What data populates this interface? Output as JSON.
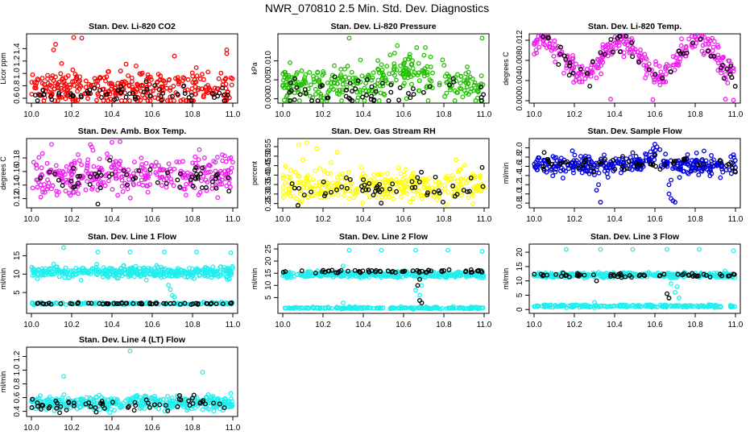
{
  "figure_title": "NWR_070810  2.5 Min. Std. Dev. Diagnostics",
  "colors": {
    "red": "#ff0000",
    "green": "#22c000",
    "magenta": "#ee22ee",
    "yellow": "#ffff00",
    "blue": "#0000dd",
    "cyan": "#22eeee",
    "overlay": "#000000"
  },
  "chart_data": [
    {
      "type": "scatter",
      "title": "Stan. Dev. Li-820 CO2",
      "ylabel": "Licor ppm",
      "xlim": [
        10.0,
        11.0
      ],
      "xticks": [
        "10.0",
        "10.2",
        "10.4",
        "10.6",
        "10.8",
        "11.0"
      ],
      "ylim": [
        0.56,
        1.6
      ],
      "yticks": [
        "0.6",
        "0.8",
        "1.0",
        "1.2",
        "1.4"
      ],
      "series": [
        {
          "color": "red",
          "baseline": 0.76,
          "spread": 0.14,
          "n": 320,
          "outliers": [
            [
              0.21,
              1.58
            ],
            [
              0.25,
              1.57
            ],
            [
              0.12,
              1.47
            ],
            [
              0.11,
              1.38
            ],
            [
              0.71,
              1.28
            ],
            [
              0.97,
              1.38
            ],
            [
              0.97,
              1.32
            ],
            [
              0.15,
              1.16
            ],
            [
              0.47,
              1.15
            ],
            [
              0.52,
              1.12
            ],
            [
              0.23,
              0.57
            ]
          ]
        },
        {
          "color": "overlay",
          "baseline": 0.66,
          "spread": 0.07,
          "n": 60
        }
      ]
    },
    {
      "type": "scatter",
      "title": "Stan. Dev. Li-820 Pressure",
      "ylabel": "kPa",
      "xlim": [
        10.0,
        11.0
      ],
      "xticks": [
        "10.0",
        "10.2",
        "10.4",
        "10.6",
        "10.8",
        "11.0"
      ],
      "ylim": [
        -0.0005,
        0.0165
      ],
      "yticks": [
        "0.000",
        "0.005",
        "0.010"
      ],
      "series": [
        {
          "color": "green",
          "baseline": 0.004,
          "spread": 0.003,
          "n": 320,
          "bump": [
            0.62,
            0.12,
            0.004
          ],
          "outliers": [
            [
              0.33,
              0.016
            ],
            [
              0.99,
              0.016
            ],
            [
              0.63,
              0.011
            ],
            [
              0.6,
              0.009
            ]
          ]
        },
        {
          "color": "overlay",
          "baseline": 0.002,
          "spread": 0.002,
          "n": 55
        }
      ]
    },
    {
      "type": "scatter",
      "title": "Stan. Dev. Li-820 Temp.",
      "ylabel": "degrees C",
      "xlim": [
        10.0,
        11.0
      ],
      "xticks": [
        "10.0",
        "10.2",
        "10.4",
        "10.6",
        "10.8",
        "11.0"
      ],
      "ylim": [
        0.0,
        0.0128
      ],
      "yticks": [
        "0.000",
        "0.004",
        "0.008",
        "0.012"
      ],
      "series": [
        {
          "color": "magenta",
          "baseline": 0.0085,
          "spread": 0.0012,
          "n": 320,
          "wave": 0.0035,
          "outliers": [
            [
              0.38,
              0.0003
            ],
            [
              0.59,
              0.0002
            ],
            [
              0.95,
              0.0003
            ],
            [
              0.99,
              0.0001
            ]
          ]
        },
        {
          "color": "overlay",
          "baseline": 0.0085,
          "spread": 0.0014,
          "n": 50,
          "wave": 0.0035
        }
      ]
    },
    {
      "type": "scatter",
      "title": "Stan. Dev. Amb. Box Temp.",
      "ylabel": "degrees C",
      "xlim": [
        10.0,
        11.0
      ],
      "xticks": [
        "10.0",
        "10.2",
        "10.4",
        "10.6",
        "10.8",
        "11.0"
      ],
      "ylim": [
        0.11,
        0.205
      ],
      "yticks": [
        "0.12",
        "0.14",
        "0.16",
        "0.18"
      ],
      "series": [
        {
          "color": "magenta",
          "baseline": 0.155,
          "spread": 0.014,
          "n": 330,
          "outliers": [
            [
              0.1,
              0.2
            ],
            [
              0.4,
              0.203
            ],
            [
              0.44,
              0.204
            ],
            [
              0.3,
              0.196
            ]
          ]
        },
        {
          "color": "overlay",
          "baseline": 0.152,
          "spread": 0.01,
          "n": 55,
          "outliers": [
            [
              0.33,
              0.112
            ]
          ]
        }
      ]
    },
    {
      "type": "scatter",
      "title": "Stan. Dev. Gas Stream RH",
      "ylabel": "percent",
      "xlim": [
        10.0,
        11.0
      ],
      "xticks": [
        "10.0",
        "10.2",
        "10.4",
        "10.6",
        "10.8",
        "11.0"
      ],
      "ylim": [
        0.24,
        0.58
      ],
      "yticks": [
        "0.25",
        "0.30",
        "0.35",
        "0.40",
        "0.45",
        "0.50",
        "0.55"
      ],
      "series": [
        {
          "color": "yellow",
          "baseline": 0.345,
          "spread": 0.045,
          "n": 320,
          "outliers": [
            [
              0.08,
              0.56
            ],
            [
              0.12,
              0.57
            ],
            [
              0.17,
              0.54
            ],
            [
              0.27,
              0.52
            ]
          ]
        },
        {
          "color": "overlay",
          "baseline": 0.33,
          "spread": 0.03,
          "n": 55,
          "outliers": [
            [
              0.99,
              0.44
            ]
          ]
        }
      ]
    },
    {
      "type": "scatter",
      "title": "Stan. Dev. Sample Flow",
      "ylabel": "ml/min",
      "xlim": [
        10.0,
        11.0
      ],
      "xticks": [
        "10.0",
        "10.2",
        "10.4",
        "10.6",
        "10.8",
        "11.0"
      ],
      "ylim": [
        0.75,
        2.15
      ],
      "yticks": [
        "0.8",
        "1.0",
        "1.2",
        "1.4",
        "1.6",
        "1.8",
        "2.0"
      ],
      "series": [
        {
          "color": "blue",
          "baseline": 1.62,
          "spread": 0.1,
          "n": 340,
          "bump": [
            0.6,
            0.05,
            0.2
          ],
          "outliers": [
            [
              0.32,
              1.2
            ],
            [
              0.31,
              1.08
            ],
            [
              0.33,
              0.82
            ],
            [
              0.6,
              2.08
            ],
            [
              0.61,
              2.02
            ],
            [
              0.67,
              1.0
            ],
            [
              0.68,
              0.9
            ],
            [
              0.69,
              0.85
            ],
            [
              0.7,
              0.82
            ],
            [
              0.67,
              1.2
            ],
            [
              0.68,
              1.3
            ],
            [
              0.99,
              1.85
            ]
          ]
        },
        {
          "color": "overlay",
          "baseline": 1.66,
          "spread": 0.08,
          "n": 55,
          "outliers": [
            [
              0.05,
              1.9
            ],
            [
              0.6,
              1.85
            ]
          ]
        }
      ]
    },
    {
      "type": "scatter",
      "title": "Stan. Dev. Line 1 Flow",
      "ylabel": "ml/min",
      "xlim": [
        10.0,
        11.0
      ],
      "xticks": [
        "10.0",
        "10.2",
        "10.4",
        "10.6",
        "10.8",
        "11.0"
      ],
      "ylim": [
        0.0,
        17.5
      ],
      "yticks": [
        "5",
        "10",
        "15"
      ],
      "series": [
        {
          "color": "cyan",
          "baseline": 10.5,
          "spread": 0.8,
          "n": 420,
          "outliers": [
            [
              0.16,
              17.2
            ],
            [
              0.33,
              16.0
            ],
            [
              0.49,
              16.0
            ],
            [
              0.66,
              16.0
            ],
            [
              0.82,
              16.0
            ],
            [
              0.99,
              15.8
            ],
            [
              0.68,
              7.0
            ],
            [
              0.69,
              5.8
            ],
            [
              0.7,
              4.2
            ],
            [
              0.71,
              3.8
            ]
          ]
        },
        {
          "color": "cyan",
          "baseline": 2.0,
          "spread": 0.15,
          "n": 200
        },
        {
          "color": "overlay",
          "baseline": 2.0,
          "spread": 0.12,
          "n": 60
        }
      ]
    },
    {
      "type": "scatter",
      "title": "Stan. Dev. Line 2 Flow",
      "ylabel": "ml/min",
      "xlim": [
        10.0,
        11.0
      ],
      "xticks": [
        "10.0",
        "10.2",
        "10.4",
        "10.6",
        "10.8",
        "11.0"
      ],
      "ylim": [
        -0.5,
        26.0
      ],
      "yticks": [
        "5",
        "10",
        "15",
        "20",
        "25"
      ],
      "series": [
        {
          "color": "cyan",
          "baseline": 14.5,
          "spread": 0.6,
          "n": 400,
          "outliers": [
            [
              0.33,
              24.5
            ],
            [
              0.49,
              24.5
            ],
            [
              0.66,
              24.5
            ],
            [
              0.82,
              24.5
            ],
            [
              0.99,
              24.0
            ],
            [
              0.3,
              18.0
            ],
            [
              0.66,
              8.0
            ],
            [
              0.68,
              6.0
            ],
            [
              0.69,
              10.0
            ]
          ]
        },
        {
          "color": "cyan",
          "baseline": 0.7,
          "spread": 0.2,
          "n": 200,
          "outliers": [
            [
              0.3,
              2.8
            ]
          ]
        },
        {
          "color": "overlay",
          "baseline": 15.8,
          "spread": 0.3,
          "n": 60,
          "outliers": [
            [
              0.68,
              3.8
            ],
            [
              0.69,
              2.8
            ],
            [
              0.67,
              10.0
            ],
            [
              0.68,
              12.5
            ]
          ]
        }
      ]
    },
    {
      "type": "scatter",
      "title": "Stan. Dev. Line 3 Flow",
      "ylabel": "ml/min",
      "xlim": [
        10.0,
        11.0
      ],
      "xticks": [
        "10.0",
        "10.2",
        "10.4",
        "10.6",
        "10.8",
        "11.0"
      ],
      "ylim": [
        -0.5,
        22.0
      ],
      "yticks": [
        "0",
        "5",
        "10",
        "15",
        "20"
      ],
      "series": [
        {
          "color": "cyan",
          "baseline": 12.0,
          "spread": 0.4,
          "n": 400,
          "outliers": [
            [
              0.16,
              21.0
            ],
            [
              0.33,
              21.0
            ],
            [
              0.49,
              21.0
            ],
            [
              0.66,
              21.0
            ],
            [
              0.82,
              21.0
            ],
            [
              0.99,
              20.5
            ],
            [
              0.68,
              9.0
            ],
            [
              0.7,
              6.0
            ],
            [
              0.71,
              8.0
            ],
            [
              0.72,
              4.0
            ]
          ]
        },
        {
          "color": "cyan",
          "baseline": 1.2,
          "spread": 0.2,
          "n": 220,
          "outliers": [
            [
              0.3,
              2.5
            ]
          ]
        },
        {
          "color": "overlay",
          "baseline": 12.0,
          "spread": 0.3,
          "n": 60,
          "outliers": [
            [
              0.31,
              10.0
            ],
            [
              0.66,
              5.5
            ],
            [
              0.67,
              4.0
            ]
          ]
        }
      ]
    },
    {
      "type": "scatter",
      "title": "Stan. Dev. Line 4 (LT) Flow",
      "ylabel": "ml/min",
      "xlim": [
        10.0,
        11.0
      ],
      "xticks": [
        "10.0",
        "10.2",
        "10.4",
        "10.6",
        "10.8",
        "11.0"
      ],
      "ylim": [
        0.36,
        1.3
      ],
      "yticks": [
        "0.4",
        "0.6",
        "0.8",
        "1.0",
        "1.2"
      ],
      "series": [
        {
          "color": "cyan",
          "baseline": 0.52,
          "spread": 0.05,
          "n": 400,
          "outliers": [
            [
              0.49,
              1.28
            ],
            [
              0.16,
              0.91
            ],
            [
              0.85,
              0.97
            ],
            [
              0.99,
              0.66
            ]
          ]
        },
        {
          "color": "overlay",
          "baseline": 0.5,
          "spread": 0.05,
          "n": 60
        }
      ]
    }
  ]
}
